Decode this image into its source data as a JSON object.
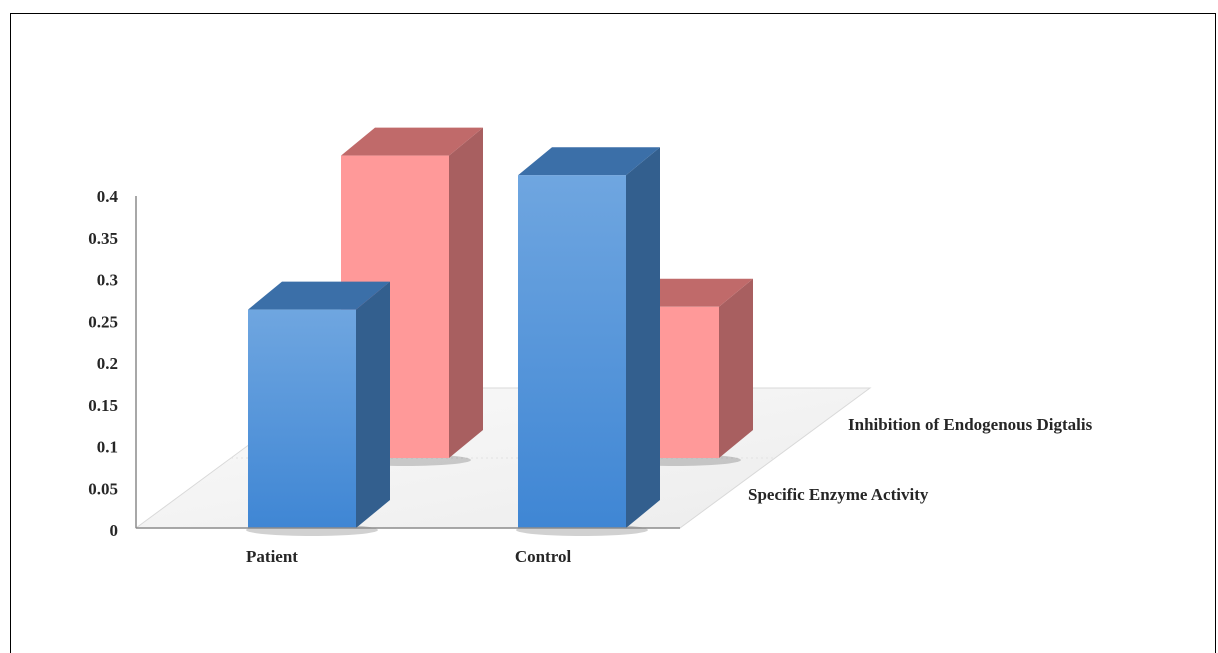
{
  "chart_data": {
    "type": "bar",
    "style": "3d-column",
    "categories": [
      "Patient",
      "Control"
    ],
    "series": [
      {
        "name": "Specific Enzyme Activity",
        "values": [
          0.26,
          0.42
        ],
        "color": "#4a8fd9"
      },
      {
        "name": "Inhibition of Endogenous Digtalis",
        "values": [
          0.36,
          0.18
        ],
        "color": "#ff9999"
      }
    ],
    "y_ticks": [
      "0",
      "0.05",
      "0.1",
      "0.15",
      "0.2",
      "0.25",
      "0.3",
      "0.35",
      "0.4"
    ],
    "ylim": [
      0,
      0.4
    ],
    "grid": false,
    "legend": "depth-axis-labels"
  }
}
